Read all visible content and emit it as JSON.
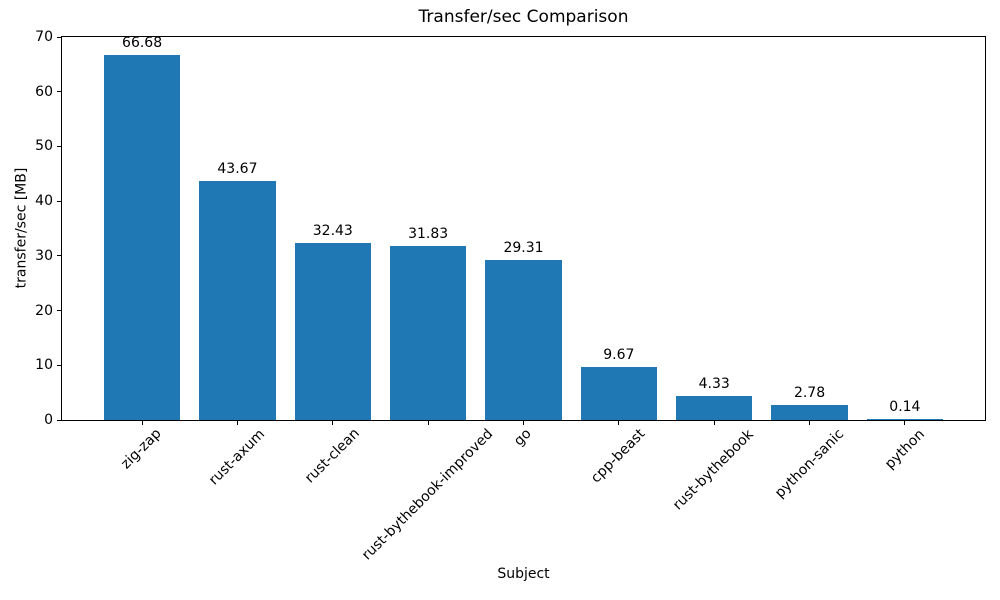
{
  "chart_data": {
    "type": "bar",
    "title": "Transfer/sec Comparison",
    "xlabel": "Subject",
    "ylabel": "transfer/sec [MB]",
    "categories": [
      "zig-zap",
      "rust-axum",
      "rust-clean",
      "rust-bythebook-improved",
      "go",
      "cpp-beast",
      "rust-bythebook",
      "python-sanic",
      "python"
    ],
    "values": [
      66.68,
      43.67,
      32.43,
      31.83,
      29.31,
      9.67,
      4.33,
      2.78,
      0.14
    ],
    "value_label_decimals": 2,
    "ylim": [
      0,
      70
    ],
    "yticks": [
      0,
      10,
      20,
      30,
      40,
      50,
      60,
      70
    ],
    "bar_color": "#1f77b4",
    "axis_color": "#000000",
    "grid": false,
    "legend_position": "none"
  }
}
